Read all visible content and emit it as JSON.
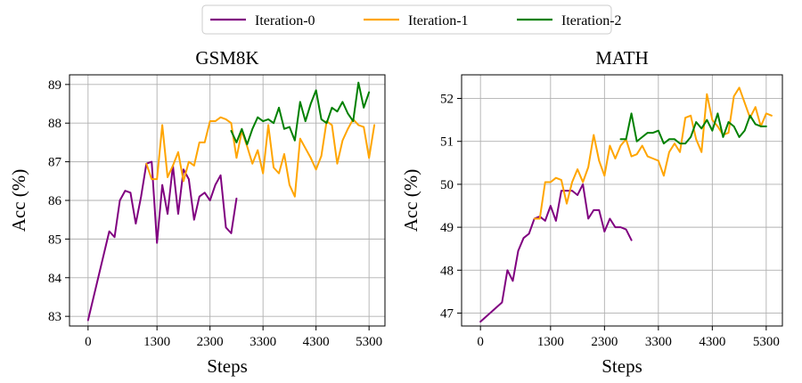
{
  "legend": {
    "placement": "top-center",
    "items": [
      {
        "name": "Iteration-0",
        "color": "#800080"
      },
      {
        "name": "Iteration-1",
        "color": "#FFA500"
      },
      {
        "name": "Iteration-2",
        "color": "#008000"
      }
    ]
  },
  "chart_data": [
    {
      "type": "line",
      "title": "GSM8K",
      "xlabel": "Steps",
      "ylabel": "Acc (%)",
      "xlim": [
        -350,
        5600
      ],
      "ylim": [
        82.75,
        89.25
      ],
      "xticks": [
        0,
        1300,
        2300,
        3300,
        4300,
        5300
      ],
      "yticks": [
        83,
        84,
        85,
        86,
        87,
        88,
        89
      ],
      "grid": true,
      "series": [
        {
          "name": "Iteration-0",
          "color": "#800080",
          "x": [
            0,
            400,
            500,
            600,
            700,
            800,
            900,
            1000,
            1100,
            1200,
            1300,
            1400,
            1500,
            1600,
            1700,
            1800,
            1900,
            2000,
            2100,
            2200,
            2300,
            2400,
            2500,
            2600,
            2700,
            2800
          ],
          "y": [
            82.9,
            85.2,
            85.05,
            86.0,
            86.25,
            86.2,
            85.4,
            86.1,
            86.95,
            87.0,
            84.9,
            86.4,
            85.65,
            86.9,
            85.65,
            86.8,
            86.55,
            85.5,
            86.1,
            86.2,
            86.0,
            86.4,
            86.65,
            85.3,
            85.15,
            86.05
          ]
        },
        {
          "name": "Iteration-1",
          "color": "#FFA500",
          "x": [
            1100,
            1200,
            1300,
            1400,
            1500,
            1600,
            1700,
            1800,
            1900,
            2000,
            2100,
            2200,
            2300,
            2400,
            2500,
            2600,
            2700,
            2800,
            2900,
            3000,
            3100,
            3200,
            3300,
            3400,
            3500,
            3600,
            3700,
            3800,
            3900,
            4000,
            4100,
            4200,
            4300,
            4400,
            4500,
            4600,
            4700,
            4800,
            4900,
            5000,
            5100,
            5200,
            5300,
            5400
          ],
          "y": [
            86.95,
            86.55,
            86.55,
            87.95,
            86.6,
            86.9,
            87.25,
            86.5,
            87.0,
            86.9,
            87.5,
            87.5,
            88.05,
            88.05,
            88.15,
            88.1,
            88.0,
            87.1,
            87.8,
            87.4,
            86.95,
            87.3,
            86.7,
            87.95,
            86.85,
            86.7,
            87.2,
            86.4,
            86.1,
            87.6,
            87.35,
            87.1,
            86.8,
            87.15,
            88.05,
            87.95,
            86.95,
            87.55,
            87.85,
            88.1,
            87.95,
            87.9,
            87.1,
            87.95
          ]
        },
        {
          "name": "Iteration-2",
          "color": "#008000",
          "x": [
            2700,
            2800,
            2900,
            3000,
            3100,
            3200,
            3300,
            3400,
            3500,
            3600,
            3700,
            3800,
            3900,
            4000,
            4100,
            4200,
            4300,
            4400,
            4500,
            4600,
            4700,
            4800,
            4900,
            5000,
            5100,
            5200,
            5300
          ],
          "y": [
            87.8,
            87.5,
            87.85,
            87.45,
            87.85,
            88.15,
            88.05,
            88.1,
            88.0,
            88.4,
            87.85,
            87.9,
            87.55,
            88.55,
            88.05,
            88.5,
            88.85,
            88.1,
            88.0,
            88.4,
            88.3,
            88.55,
            88.25,
            88.05,
            89.05,
            88.4,
            88.8
          ]
        }
      ]
    },
    {
      "type": "line",
      "title": "MATH",
      "xlabel": "Steps",
      "ylabel": "Acc (%)",
      "xlim": [
        -350,
        5600
      ],
      "ylim": [
        46.7,
        52.55
      ],
      "xticks": [
        0,
        1300,
        2300,
        3300,
        4300,
        5300
      ],
      "yticks": [
        47,
        48,
        49,
        50,
        51,
        52
      ],
      "grid": true,
      "series": [
        {
          "name": "Iteration-0",
          "color": "#800080",
          "x": [
            0,
            400,
            500,
            600,
            700,
            800,
            900,
            1000,
            1100,
            1200,
            1300,
            1400,
            1500,
            1600,
            1700,
            1800,
            1900,
            2000,
            2100,
            2200,
            2300,
            2400,
            2500,
            2600,
            2700,
            2800
          ],
          "y": [
            46.8,
            47.25,
            48.0,
            47.75,
            48.45,
            48.75,
            48.85,
            49.2,
            49.25,
            49.15,
            49.5,
            49.15,
            49.85,
            49.85,
            49.85,
            49.75,
            50.0,
            49.2,
            49.4,
            49.4,
            48.9,
            49.2,
            49.0,
            49.0,
            48.95,
            48.7
          ]
        },
        {
          "name": "Iteration-1",
          "color": "#FFA500",
          "x": [
            1000,
            1100,
            1200,
            1300,
            1400,
            1500,
            1600,
            1700,
            1800,
            1900,
            2000,
            2100,
            2200,
            2300,
            2400,
            2500,
            2600,
            2700,
            2800,
            2900,
            3000,
            3100,
            3200,
            3300,
            3400,
            3500,
            3600,
            3700,
            3800,
            3900,
            4000,
            4100,
            4200,
            4300,
            4400,
            4500,
            4600,
            4700,
            4800,
            4900,
            5000,
            5100,
            5200,
            5300,
            5400
          ],
          "y": [
            49.2,
            49.2,
            50.05,
            50.05,
            50.15,
            50.1,
            49.55,
            50.05,
            50.35,
            50.05,
            50.4,
            51.15,
            50.55,
            50.2,
            50.9,
            50.6,
            50.9,
            51.05,
            50.65,
            50.7,
            50.9,
            50.65,
            50.6,
            50.55,
            50.2,
            50.75,
            50.95,
            50.75,
            51.55,
            51.6,
            51.05,
            50.75,
            52.1,
            51.5,
            51.35,
            51.15,
            51.2,
            52.05,
            52.25,
            51.9,
            51.55,
            51.8,
            51.35,
            51.65,
            51.6
          ]
        },
        {
          "name": "Iteration-2",
          "color": "#008000",
          "x": [
            2600,
            2700,
            2800,
            2900,
            3000,
            3100,
            3200,
            3300,
            3400,
            3500,
            3600,
            3700,
            3800,
            3900,
            4000,
            4100,
            4200,
            4300,
            4400,
            4500,
            4600,
            4700,
            4800,
            4900,
            5000,
            5100,
            5200,
            5300
          ],
          "y": [
            51.05,
            51.05,
            51.65,
            51.0,
            51.1,
            51.2,
            51.2,
            51.25,
            50.95,
            51.05,
            51.05,
            50.95,
            50.95,
            51.1,
            51.45,
            51.3,
            51.5,
            51.25,
            51.65,
            51.1,
            51.45,
            51.35,
            51.1,
            51.25,
            51.6,
            51.4,
            51.35,
            51.35
          ]
        }
      ]
    }
  ]
}
